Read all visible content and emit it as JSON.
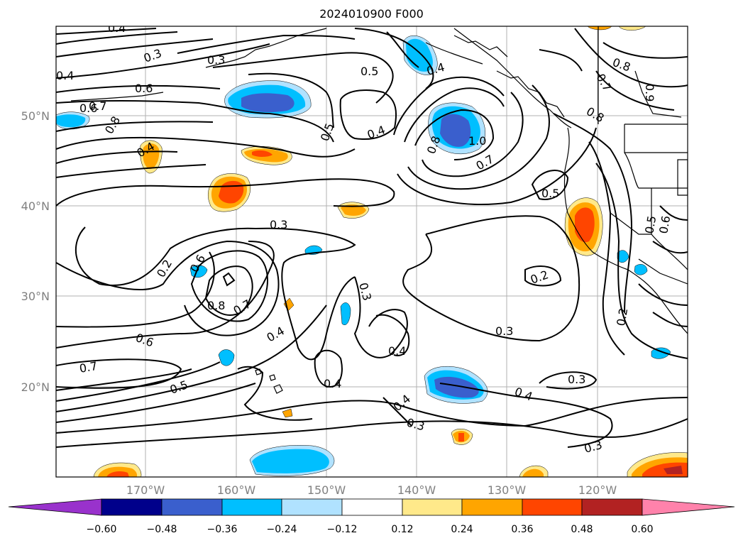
{
  "title": "2024010900 F000",
  "map": {
    "lat_labels": [
      "50°N",
      "40°N",
      "30°N",
      "20°N"
    ],
    "lon_labels": [
      "170°W",
      "160°W",
      "150°W",
      "140°W",
      "130°W",
      "120°W"
    ],
    "contour_labels": [
      "0.4",
      "0.3",
      "0.3",
      "0.4",
      "0.5",
      "0.4",
      "0.8",
      "0.7",
      "0.6",
      "0.9",
      "0.6",
      "0.7",
      "0.8",
      "0.4",
      "0.5",
      "0.4",
      "0.8",
      "1.0",
      "0.7",
      "0.8",
      "0.5",
      "0.3",
      "0.2",
      "0.6",
      "0.8",
      "0.7",
      "0.3",
      "0.3",
      "0.6",
      "0.4",
      "0.4",
      "0.2",
      "0.3",
      "0.7",
      "0.5",
      "0.4",
      "0.4",
      "0.3",
      "0.4",
      "0.3",
      "0.2",
      "0.5",
      "0.6"
    ]
  },
  "colorbar": {
    "ticks": [
      "−0.60",
      "−0.48",
      "−0.36",
      "−0.24",
      "−0.12",
      "0.12",
      "0.24",
      "0.36",
      "0.48",
      "0.60"
    ],
    "colors": [
      "#9932cc",
      "#00008b",
      "#3a5fcd",
      "#00bfff",
      "#b0e2ff",
      "#ffffff",
      "#ffe98a",
      "#ffa500",
      "#ff4500",
      "#b22222",
      "#ff82ab"
    ]
  },
  "colors": {
    "blue_dark": "#3a5fcd",
    "blue": "#00bfff",
    "blue_light": "#b0e2ff",
    "yellow": "#ffe98a",
    "orange": "#ffa500",
    "red": "#ff4500",
    "darkred": "#b22222"
  }
}
